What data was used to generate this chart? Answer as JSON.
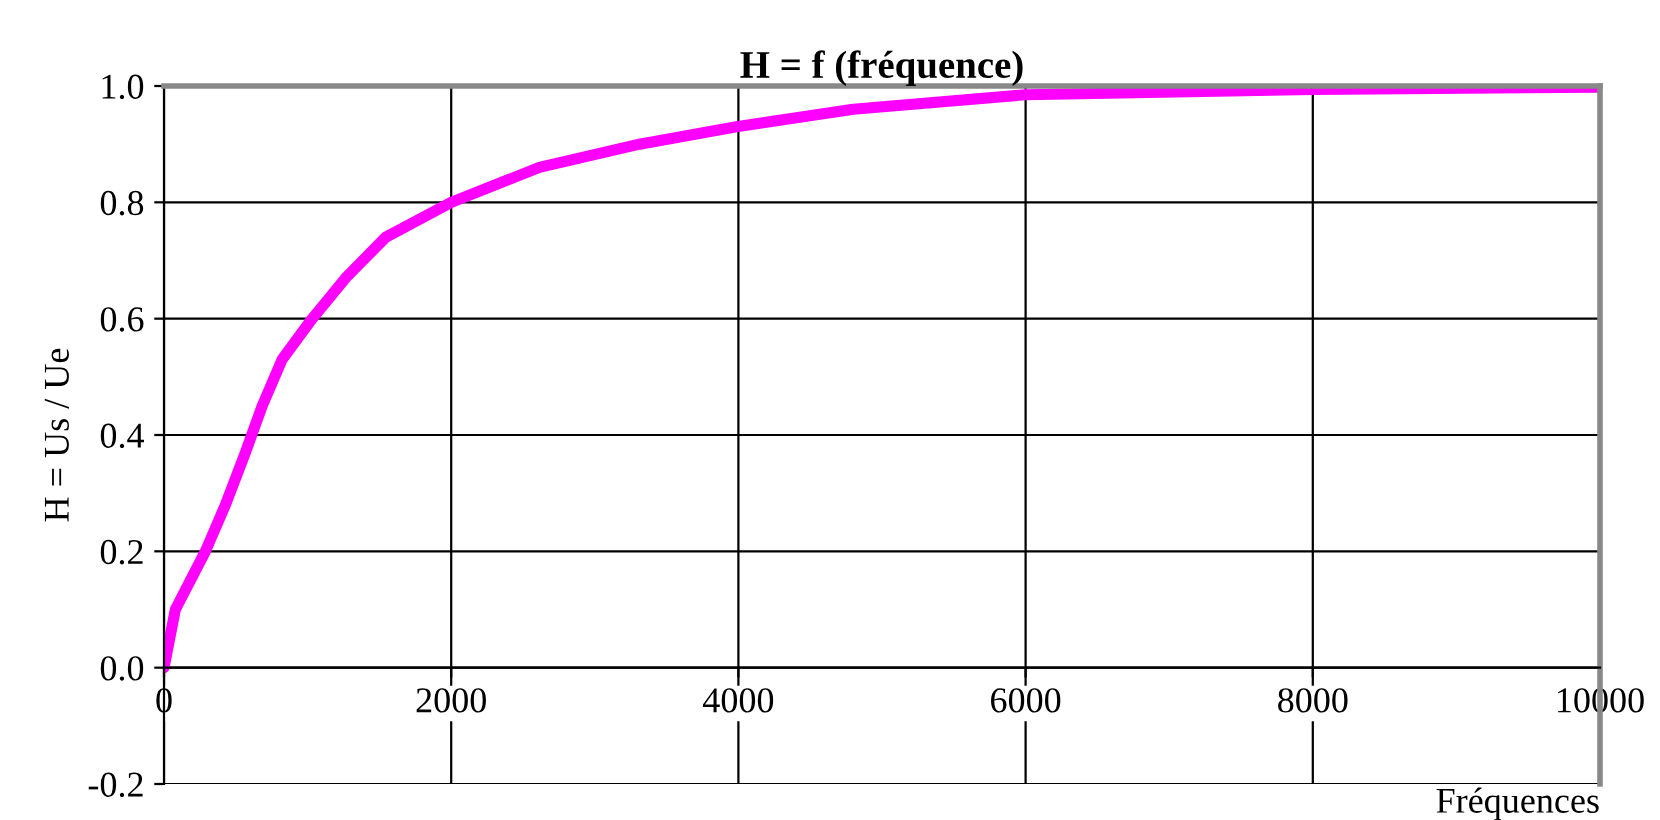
{
  "chart_data": {
    "type": "line",
    "title": "H = f (fréquence)",
    "xlabel": "Fréquences",
    "ylabel": "H = Us / Ue",
    "series": [
      {
        "color": "#ff00ff",
        "x": [
          0,
          79,
          288,
          428,
          567,
          684,
          823,
          1032,
          1265,
          1544,
          2000,
          2614,
          3311,
          3986,
          4800,
          6000,
          8000,
          10000
        ],
        "values": [
          0,
          0.1,
          0.2,
          0.28,
          0.37,
          0.45,
          0.53,
          0.6,
          0.67,
          0.74,
          0.8,
          0.86,
          0.9,
          0.93,
          0.96,
          0.985,
          0.994,
          0.998
        ]
      }
    ],
    "xlim": [
      0,
      10000
    ],
    "xticks": [
      0,
      2000,
      4000,
      6000,
      8000,
      10000
    ],
    "ylim": [
      -0.2,
      1.0
    ],
    "yticks": [
      {
        "value": -0.2,
        "label": "-0.2"
      },
      {
        "value": 0,
        "label": "0.0"
      },
      {
        "value": 0.2,
        "label": "0.2"
      },
      {
        "value": 0.4,
        "label": "0.4"
      },
      {
        "value": 0.6,
        "label": "0.6"
      },
      {
        "value": 0.8,
        "label": "0.8"
      },
      {
        "value": 1.0,
        "label": "1.0"
      }
    ],
    "grid": true,
    "marker": "none",
    "line_style": "solid"
  }
}
